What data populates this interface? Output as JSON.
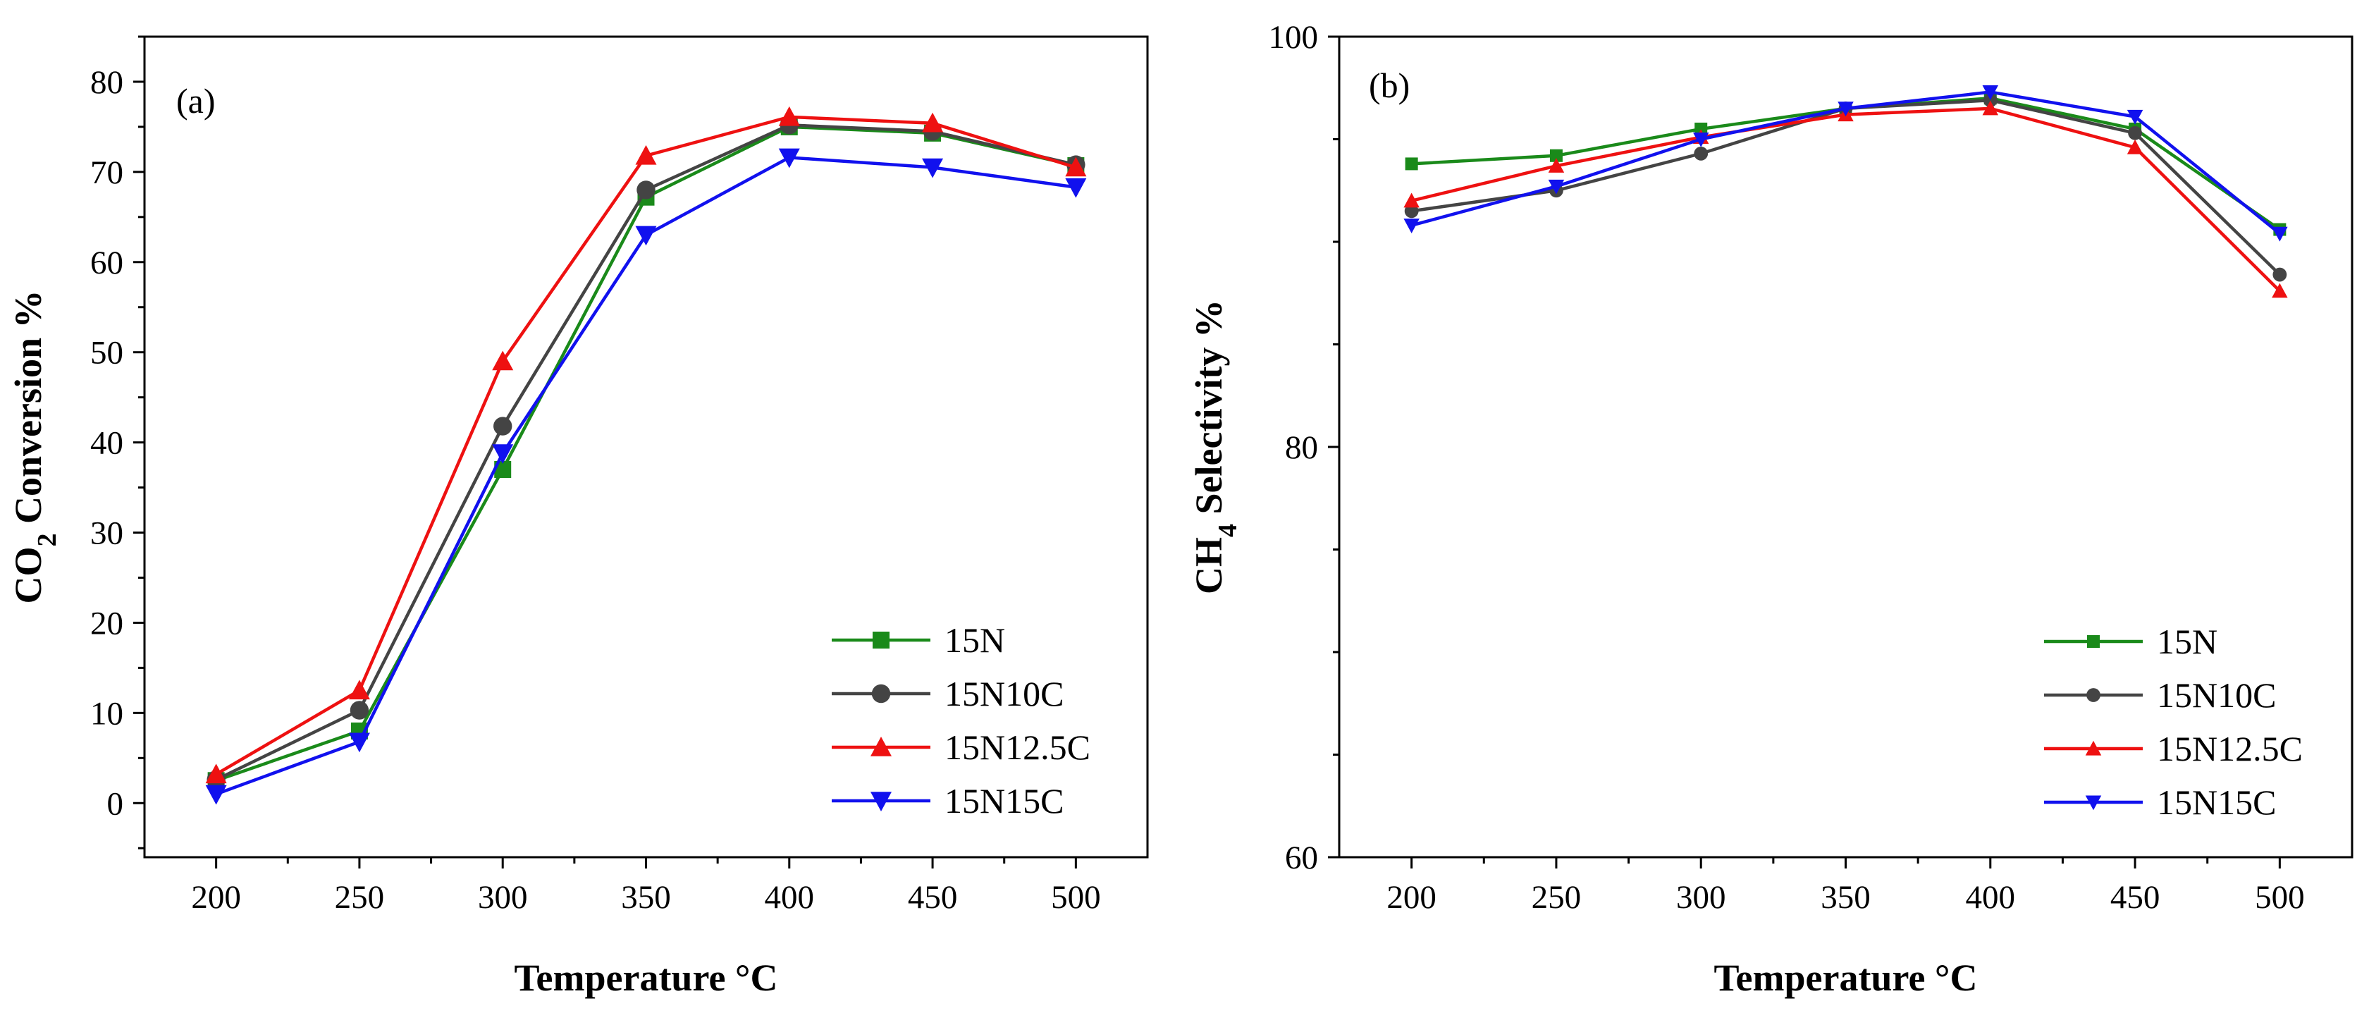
{
  "chart_data": [
    {
      "type": "line",
      "panel_label": "(a)",
      "xlabel": "Temperature °C",
      "ylabel": "CO",
      "ylabel_sub": "2",
      "ylabel_rest": " Conversion %",
      "x": [
        200,
        250,
        300,
        350,
        400,
        450,
        500
      ],
      "xlim": [
        175,
        525
      ],
      "xticks": [
        200,
        250,
        300,
        350,
        400,
        450,
        500
      ],
      "ylim": [
        -6,
        85
      ],
      "yticks": [
        0,
        10,
        20,
        30,
        40,
        50,
        60,
        70,
        80
      ],
      "legend_position": "bottom-right",
      "series": [
        {
          "name": "15N",
          "color": "#1a8a1a",
          "marker": "square",
          "values": [
            2.5,
            8.0,
            37.0,
            67.2,
            75.0,
            74.3,
            70.7
          ]
        },
        {
          "name": "15N10C",
          "color": "#444444",
          "marker": "circle",
          "values": [
            2.6,
            10.3,
            41.8,
            68.0,
            75.2,
            74.5,
            70.8
          ]
        },
        {
          "name": "15N12.5C",
          "color": "#ee1111",
          "marker": "triangle-up",
          "values": [
            3.2,
            12.5,
            49.0,
            71.8,
            76.1,
            75.4,
            70.5
          ]
        },
        {
          "name": "15N15C",
          "color": "#1111ee",
          "marker": "triangle-down",
          "values": [
            1.0,
            6.8,
            38.8,
            63.0,
            71.6,
            70.5,
            68.3
          ]
        }
      ]
    },
    {
      "type": "line",
      "panel_label": "(b)",
      "xlabel": "Temperature °C",
      "ylabel": "CH",
      "ylabel_sub": "4",
      "ylabel_rest": " Selectivity %",
      "x": [
        200,
        250,
        300,
        350,
        400,
        450,
        500
      ],
      "xlim": [
        175,
        525
      ],
      "xticks": [
        200,
        250,
        300,
        350,
        400,
        450,
        500
      ],
      "ylim": [
        60,
        100
      ],
      "yticks": [
        60,
        80,
        100
      ],
      "legend_position": "bottom-right",
      "series": [
        {
          "name": "15N",
          "color": "#1a8a1a",
          "marker": "square",
          "values": [
            93.8,
            94.2,
            95.5,
            96.5,
            97.0,
            95.5,
            90.6
          ]
        },
        {
          "name": "15N10C",
          "color": "#444444",
          "marker": "circle",
          "values": [
            91.5,
            92.5,
            94.3,
            96.5,
            96.9,
            95.3,
            88.4
          ]
        },
        {
          "name": "15N12.5C",
          "color": "#ee1111",
          "marker": "triangle-up",
          "values": [
            92.0,
            93.7,
            95.1,
            96.2,
            96.5,
            94.6,
            87.6
          ]
        },
        {
          "name": "15N15C",
          "color": "#1111ee",
          "marker": "triangle-down",
          "values": [
            90.8,
            92.7,
            95.0,
            96.5,
            97.3,
            96.1,
            90.4
          ]
        }
      ]
    }
  ]
}
